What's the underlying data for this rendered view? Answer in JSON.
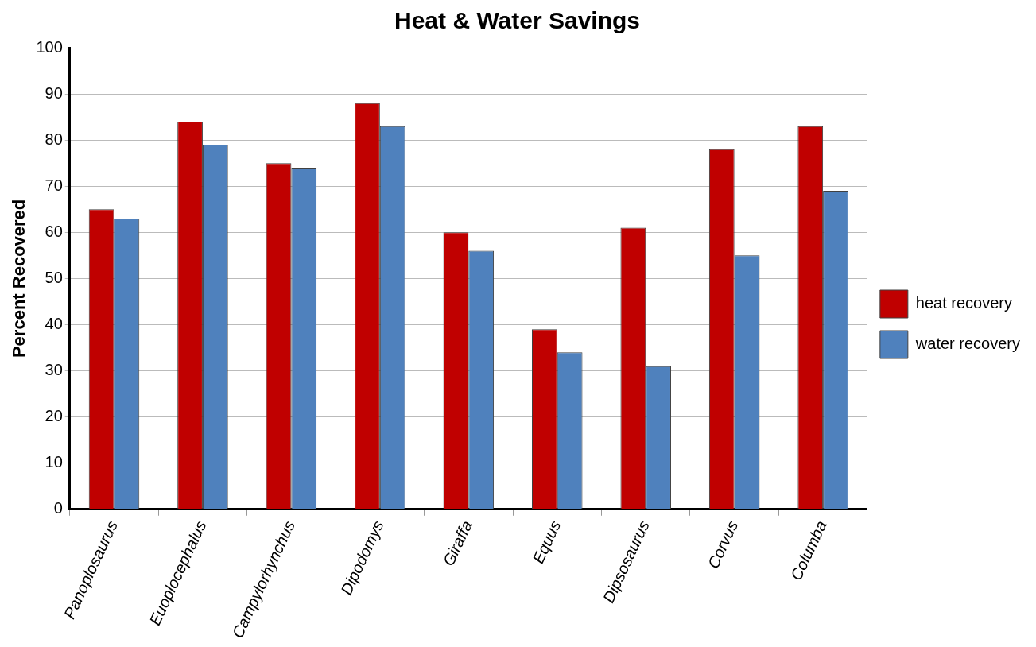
{
  "chart_data": {
    "type": "bar",
    "title": "Heat & Water Savings",
    "ylabel": "Percent Recovered",
    "categories": [
      "Panoplosaurus",
      "Euoplocephalus",
      "Campylorhynchus",
      "Dipodomys",
      "Giraffa",
      "Equus",
      "Dipsosaurus",
      "Corvus",
      "Columba"
    ],
    "series": [
      {
        "name": "heat recovery",
        "color": "#c00000",
        "values": [
          65,
          84,
          75,
          88,
          60,
          39,
          61,
          78,
          83
        ]
      },
      {
        "name": "water recovery",
        "color": "#4f81bd",
        "values": [
          63,
          79,
          74,
          83,
          56,
          34,
          31,
          55,
          69
        ]
      }
    ],
    "ylim": [
      0,
      100
    ],
    "yticks": [
      0,
      10,
      20,
      30,
      40,
      50,
      60,
      70,
      80,
      90,
      100
    ],
    "grid": "y",
    "legend": "right"
  }
}
